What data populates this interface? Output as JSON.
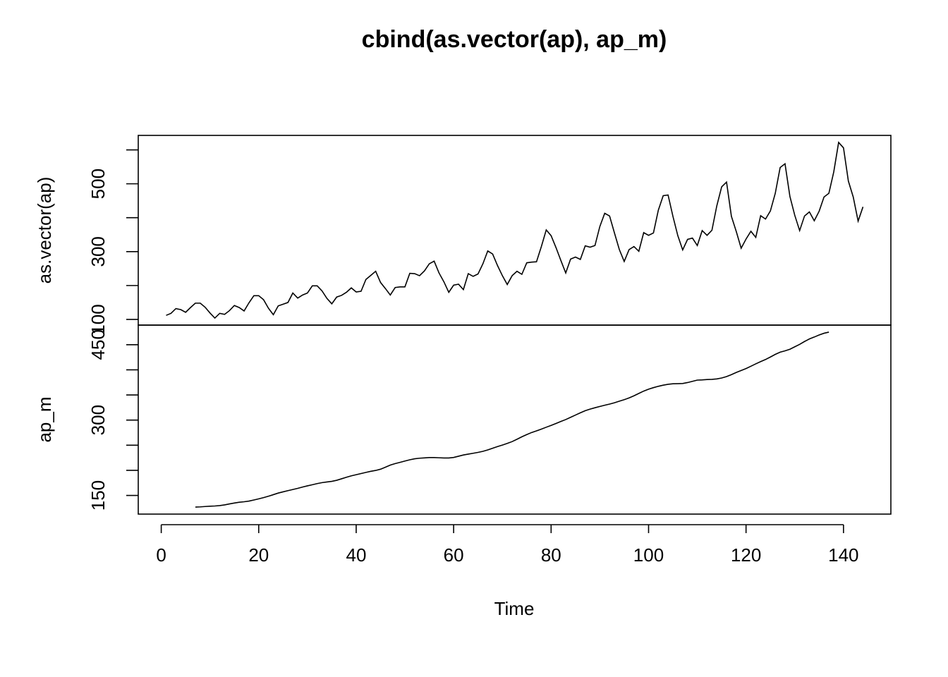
{
  "chart_data": {
    "type": "line",
    "title": "cbind(as.vector(ap), ap_m)",
    "xlabel": "Time",
    "xlim": [
      -4.72,
      149.72
    ],
    "xticks": [
      0,
      20,
      40,
      60,
      80,
      100,
      120,
      140
    ],
    "color": "#000000",
    "x": [
      1,
      2,
      3,
      4,
      5,
      6,
      7,
      8,
      9,
      10,
      11,
      12,
      13,
      14,
      15,
      16,
      17,
      18,
      19,
      20,
      21,
      22,
      23,
      24,
      25,
      26,
      27,
      28,
      29,
      30,
      31,
      32,
      33,
      34,
      35,
      36,
      37,
      38,
      39,
      40,
      41,
      42,
      43,
      44,
      45,
      46,
      47,
      48,
      49,
      50,
      51,
      52,
      53,
      54,
      55,
      56,
      57,
      58,
      59,
      60,
      61,
      62,
      63,
      64,
      65,
      66,
      67,
      68,
      69,
      70,
      71,
      72,
      73,
      74,
      75,
      76,
      77,
      78,
      79,
      80,
      81,
      82,
      83,
      84,
      85,
      86,
      87,
      88,
      89,
      90,
      91,
      92,
      93,
      94,
      95,
      96,
      97,
      98,
      99,
      100,
      101,
      102,
      103,
      104,
      105,
      106,
      107,
      108,
      109,
      110,
      111,
      112,
      113,
      114,
      115,
      116,
      117,
      118,
      119,
      120,
      121,
      122,
      123,
      124,
      125,
      126,
      127,
      128,
      129,
      130,
      131,
      132,
      133,
      134,
      135,
      136,
      137,
      138,
      139,
      140,
      141,
      142,
      143,
      144
    ],
    "panels": [
      {
        "ylabel": "as.vector(ap)",
        "ylim": [
          83.28,
          642.72
        ],
        "yticks": [
          100,
          300,
          500
        ],
        "yticks_unlabeled": [
          200,
          400,
          600
        ],
        "values": [
          112,
          118,
          132,
          129,
          121,
          135,
          148,
          148,
          136,
          119,
          104,
          118,
          115,
          126,
          141,
          135,
          125,
          149,
          170,
          170,
          158,
          133,
          114,
          140,
          145,
          150,
          178,
          163,
          172,
          178,
          199,
          199,
          184,
          162,
          146,
          166,
          171,
          180,
          193,
          181,
          183,
          218,
          230,
          242,
          209,
          191,
          172,
          194,
          196,
          196,
          236,
          235,
          229,
          243,
          264,
          272,
          237,
          211,
          180,
          201,
          204,
          188,
          235,
          227,
          234,
          264,
          302,
          293,
          259,
          229,
          203,
          229,
          242,
          233,
          267,
          269,
          270,
          315,
          364,
          347,
          312,
          274,
          237,
          278,
          284,
          277,
          317,
          313,
          318,
          374,
          413,
          405,
          355,
          306,
          271,
          306,
          315,
          301,
          356,
          348,
          355,
          422,
          465,
          467,
          404,
          347,
          305,
          336,
          340,
          318,
          362,
          348,
          363,
          435,
          491,
          505,
          404,
          359,
          310,
          337,
          360,
          342,
          406,
          396,
          420,
          472,
          548,
          559,
          463,
          407,
          362,
          405,
          417,
          391,
          419,
          461,
          472,
          535,
          622,
          606,
          508,
          461,
          390,
          432
        ]
      },
      {
        "ylabel": "ap_m",
        "ylim": [
          112.86,
          488.97
        ],
        "yticks": [
          150,
          300,
          450
        ],
        "yticks_unlabeled": [
          200,
          250,
          350,
          400
        ],
        "values": [
          null,
          null,
          null,
          null,
          null,
          null,
          126.79,
          127.25,
          127.96,
          128.58,
          129.0,
          129.75,
          131.25,
          133.08,
          134.92,
          136.42,
          137.42,
          138.75,
          140.92,
          143.17,
          145.71,
          148.42,
          151.54,
          154.71,
          157.13,
          159.54,
          161.83,
          164.13,
          166.67,
          169.08,
          171.25,
          173.58,
          175.46,
          176.83,
          178.04,
          180.17,
          183.13,
          186.21,
          189.04,
          191.29,
          193.58,
          195.83,
          198.04,
          199.75,
          202.21,
          206.25,
          210.42,
          213.38,
          215.83,
          218.5,
          220.92,
          222.92,
          224.08,
          224.71,
          225.33,
          225.33,
          224.96,
          224.58,
          224.46,
          225.54,
          228.0,
          230.46,
          232.25,
          233.92,
          235.63,
          237.75,
          240.5,
          243.96,
          247.17,
          250.25,
          253.5,
          257.13,
          261.83,
          266.67,
          271.13,
          275.21,
          278.5,
          281.96,
          285.75,
          289.33,
          293.25,
          297.17,
          301.0,
          305.46,
          309.96,
          314.42,
          318.63,
          321.75,
          324.5,
          327.08,
          329.54,
          331.83,
          334.46,
          337.54,
          340.54,
          344.08,
          348.25,
          353.0,
          357.63,
          361.38,
          364.5,
          367.17,
          369.46,
          371.21,
          372.17,
          372.42,
          372.75,
          374.63,
          377.04,
          379.5,
          380.0,
          380.71,
          380.96,
          381.83,
          383.67,
          386.5,
          390.33,
          394.71,
          398.63,
          402.54,
          407.17,
          411.88,
          416.33,
          420.5,
          425.5,
          430.71,
          435.13,
          437.71,
          440.96,
          445.83,
          450.63,
          456.33,
          461.38,
          465.21,
          469.33,
          472.75,
          475.04,
          null,
          null,
          null,
          null,
          null,
          null
        ]
      }
    ]
  }
}
